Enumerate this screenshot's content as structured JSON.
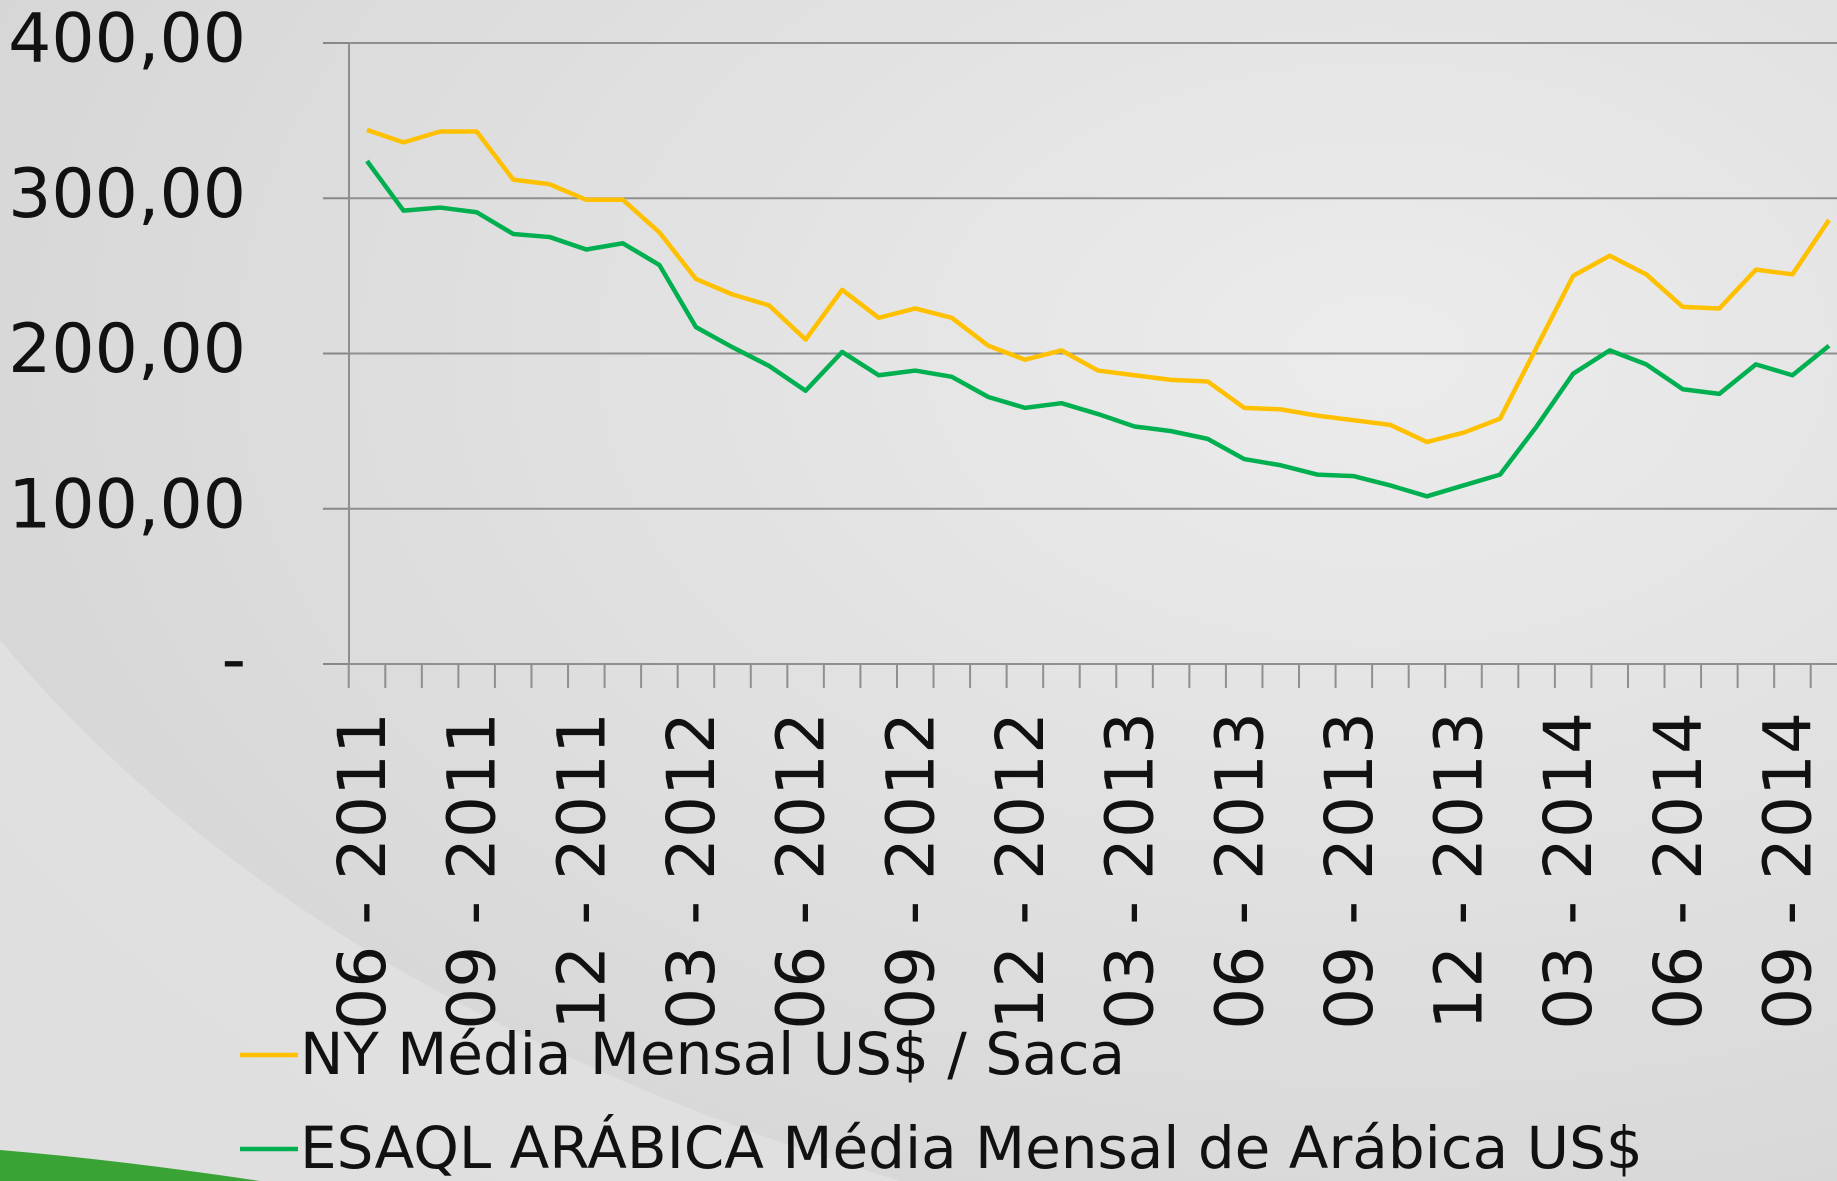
{
  "chart_data": {
    "type": "line",
    "categories": [
      "06 - 2011",
      null,
      null,
      "09 - 2011",
      null,
      null,
      "12 - 2011",
      null,
      null,
      "03 - 2012",
      null,
      null,
      "06 - 2012",
      null,
      null,
      "09 - 2012",
      null,
      null,
      "12 - 2012",
      null,
      null,
      "03 - 2013",
      null,
      null,
      "06 - 2013",
      null,
      null,
      "09 - 2013",
      null,
      null,
      "12 - 2013",
      null,
      null,
      "03 - 2014",
      null,
      null,
      "06 - 2014",
      null,
      null,
      "09 - 2014",
      null
    ],
    "series": [
      {
        "name": "NY Média Mensal US$ / Saca",
        "color": "#FFC000",
        "values": [
          344,
          336,
          343,
          343,
          312,
          309,
          299,
          299,
          278,
          248,
          238,
          231,
          209,
          241,
          223,
          229,
          223,
          205,
          196,
          202,
          189,
          186,
          183,
          182,
          165,
          164,
          160,
          157,
          154,
          143,
          149,
          158,
          204,
          250,
          263,
          251,
          230,
          229,
          254,
          251,
          286
        ]
      },
      {
        "name": "ESAQL ARÁBICA Média Mensal de Arábica US$",
        "color": "#00B050",
        "values": [
          324,
          292,
          294,
          291,
          277,
          275,
          267,
          271,
          257,
          217,
          204,
          192,
          176,
          201,
          186,
          189,
          185,
          172,
          165,
          168,
          161,
          153,
          150,
          145,
          132,
          128,
          122,
          121,
          115,
          108,
          115,
          122,
          153,
          187,
          202,
          193,
          177,
          174,
          193,
          186,
          205
        ]
      }
    ],
    "ylim": [
      0,
      400
    ],
    "yticks": [
      {
        "value": 0,
        "label": "-"
      },
      {
        "value": 100,
        "label": "100,00"
      },
      {
        "value": 200,
        "label": "200,00"
      },
      {
        "value": 300,
        "label": "300,00"
      },
      {
        "value": 400,
        "label": "400,00"
      }
    ],
    "grid": true
  }
}
